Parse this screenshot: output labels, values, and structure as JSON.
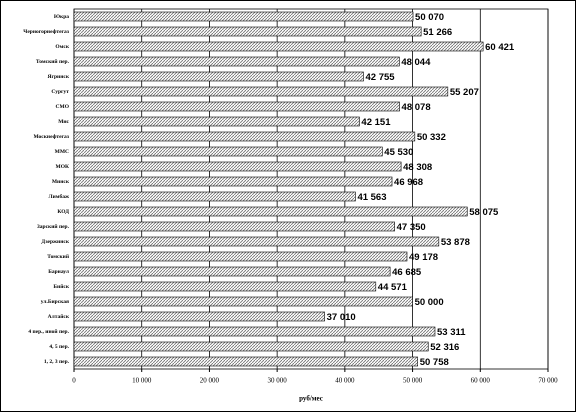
{
  "chart_data": {
    "type": "hbar",
    "x_label": "руб/мес",
    "categories": [
      "Юкра",
      "Черногорнефтегаз",
      "Омск",
      "Томский пер.",
      "Ягринск",
      "Сургут",
      "СМО",
      "Мнс",
      "Москнефтегаз",
      "ММС",
      "МОК",
      "Минск",
      "Лимбаж",
      "КОД",
      "Зарский пер.",
      "Дзержинск",
      "Томский",
      "Барнаул",
      "Бийск",
      "ул.Бирская",
      "Алтайск",
      "4 пер., иной пер.",
      "4, 5 пер.",
      "1, 2, 3 пер."
    ],
    "values": [
      50070,
      51266,
      60421,
      48044,
      42755,
      55207,
      48078,
      42151,
      50332,
      45530,
      48308,
      46968,
      41563,
      58075,
      47350,
      53878,
      49178,
      46685,
      44571,
      50000,
      37010,
      53311,
      52316,
      50758
    ],
    "value_labels": [
      "50 070",
      "51 266",
      "60 421",
      "48 044",
      "42 755",
      "55 207",
      "48 078",
      "42 151",
      "50 332",
      "45 530",
      "48 308",
      "46 968",
      "41 563",
      "58 075",
      "47 350",
      "53 878",
      "49 178",
      "46 685",
      "44 571",
      "50 000",
      "37 010",
      "53 311",
      "52 316",
      "50 758"
    ],
    "color": "#777777",
    "xlim": [
      0,
      70000
    ],
    "xticks": [
      0,
      {
        "value": 10000,
        "label": "10 000"
      },
      {
        "value": 20000,
        "label": "20 000"
      },
      {
        "value": 30000,
        "label": "30 000"
      },
      {
        "value": 40000,
        "label": "40 000"
      },
      {
        "value": 50000,
        "label": "50 000"
      },
      {
        "value": 60000,
        "label": "60 000"
      },
      {
        "value": 70000,
        "label": "70 000"
      }
    ],
    "grid": true
  }
}
